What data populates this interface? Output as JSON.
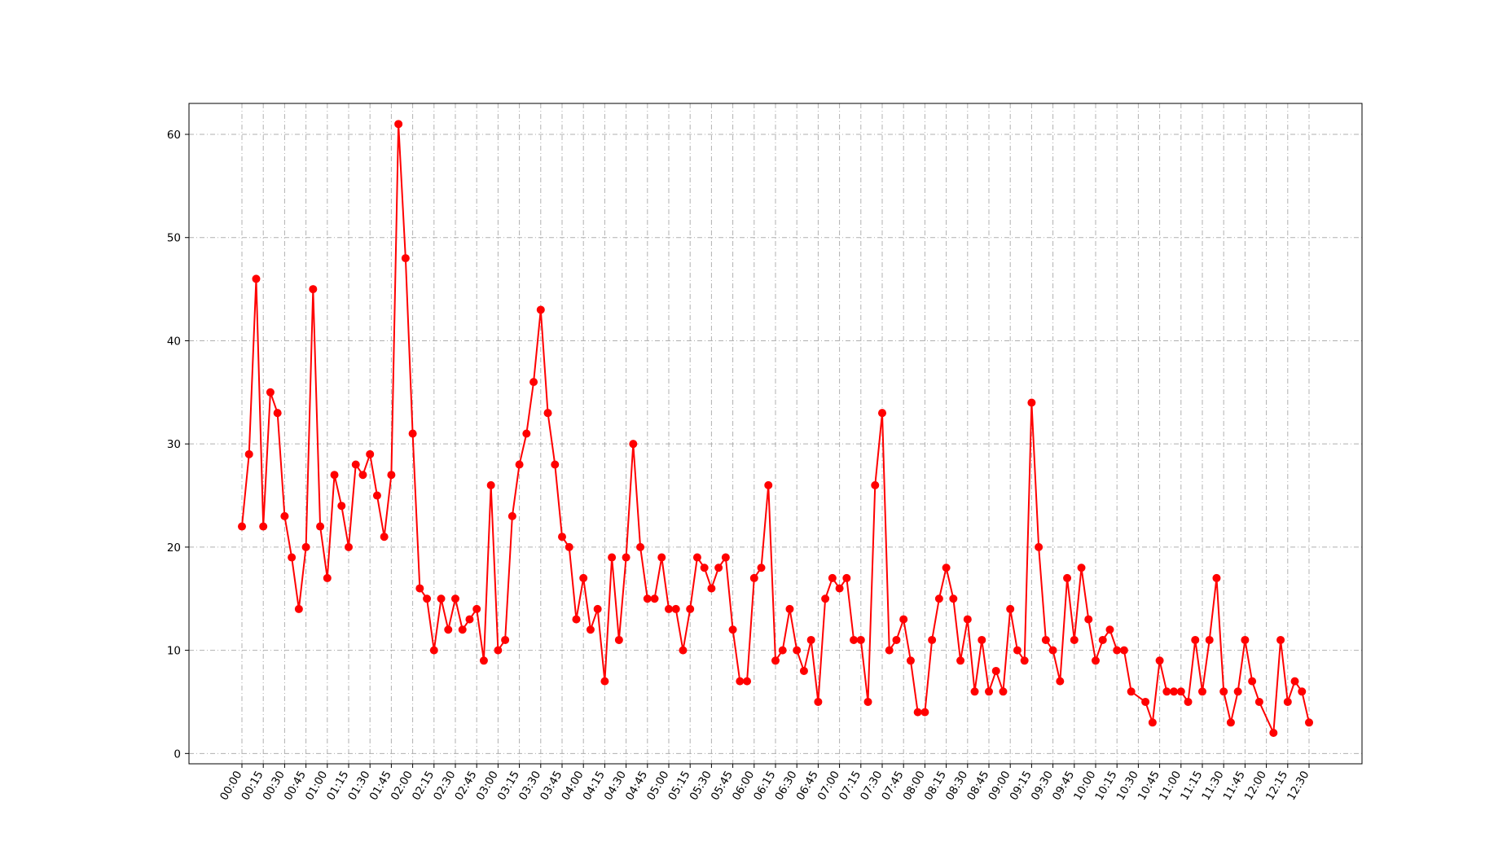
{
  "chart_data": {
    "type": "line",
    "title": "",
    "xlabel": "",
    "ylabel": "",
    "ylim": [
      -1,
      63
    ],
    "yticks": [
      0,
      10,
      20,
      30,
      40,
      50,
      60
    ],
    "grid": true,
    "grid_style": "dashdot",
    "series_color": "#ff0000",
    "marker": "circle",
    "x_tick_labels": [
      "00:00",
      "00:15",
      "00:30",
      "00:45",
      "01:00",
      "01:15",
      "01:30",
      "01:45",
      "02:00",
      "02:15",
      "02:30",
      "02:45",
      "03:00",
      "03:15",
      "03:30",
      "03:45",
      "04:00",
      "04:15",
      "04:30",
      "04:45",
      "05:00",
      "05:15",
      "05:30",
      "05:45",
      "06:00",
      "06:15",
      "06:30",
      "06:45",
      "07:00",
      "07:15",
      "07:30",
      "07:45",
      "08:00",
      "08:15",
      "08:30",
      "08:45",
      "09:00",
      "09:15",
      "09:30",
      "09:45",
      "10:00",
      "10:15",
      "10:30",
      "10:45",
      "11:00",
      "11:15",
      "11:30",
      "11:45",
      "12:00",
      "12:15",
      "12:30"
    ],
    "points": [
      [
        "00:00",
        22
      ],
      [
        "00:05",
        29
      ],
      [
        "00:10",
        46
      ],
      [
        "00:15",
        22
      ],
      [
        "00:20",
        35
      ],
      [
        "00:25",
        33
      ],
      [
        "00:30",
        23
      ],
      [
        "00:35",
        19
      ],
      [
        "00:40",
        14
      ],
      [
        "00:45",
        20
      ],
      [
        "00:50",
        45
      ],
      [
        "00:55",
        22
      ],
      [
        "01:00",
        17
      ],
      [
        "01:05",
        27
      ],
      [
        "01:10",
        24
      ],
      [
        "01:15",
        20
      ],
      [
        "01:20",
        28
      ],
      [
        "01:25",
        27
      ],
      [
        "01:30",
        29
      ],
      [
        "01:35",
        25
      ],
      [
        "01:40",
        21
      ],
      [
        "01:45",
        27
      ],
      [
        "01:50",
        61
      ],
      [
        "01:55",
        48
      ],
      [
        "02:00",
        31
      ],
      [
        "02:05",
        16
      ],
      [
        "02:10",
        15
      ],
      [
        "02:15",
        10
      ],
      [
        "02:20",
        15
      ],
      [
        "02:25",
        12
      ],
      [
        "02:30",
        15
      ],
      [
        "02:35",
        12
      ],
      [
        "02:40",
        13
      ],
      [
        "02:45",
        14
      ],
      [
        "02:50",
        9
      ],
      [
        "02:55",
        26
      ],
      [
        "03:00",
        10
      ],
      [
        "03:05",
        11
      ],
      [
        "03:10",
        23
      ],
      [
        "03:15",
        28
      ],
      [
        "03:20",
        31
      ],
      [
        "03:25",
        36
      ],
      [
        "03:30",
        43
      ],
      [
        "03:35",
        33
      ],
      [
        "03:40",
        28
      ],
      [
        "03:45",
        21
      ],
      [
        "03:50",
        20
      ],
      [
        "03:55",
        13
      ],
      [
        "04:00",
        17
      ],
      [
        "04:05",
        12
      ],
      [
        "04:10",
        14
      ],
      [
        "04:15",
        7
      ],
      [
        "04:20",
        19
      ],
      [
        "04:25",
        11
      ],
      [
        "04:30",
        19
      ],
      [
        "04:35",
        30
      ],
      [
        "04:40",
        20
      ],
      [
        "04:45",
        15
      ],
      [
        "04:50",
        15
      ],
      [
        "04:55",
        19
      ],
      [
        "05:00",
        14
      ],
      [
        "05:05",
        14
      ],
      [
        "05:10",
        10
      ],
      [
        "05:15",
        14
      ],
      [
        "05:20",
        19
      ],
      [
        "05:25",
        18
      ],
      [
        "05:30",
        16
      ],
      [
        "05:35",
        18
      ],
      [
        "05:40",
        19
      ],
      [
        "05:45",
        12
      ],
      [
        "05:50",
        7
      ],
      [
        "05:55",
        7
      ],
      [
        "06:00",
        17
      ],
      [
        "06:05",
        18
      ],
      [
        "06:10",
        26
      ],
      [
        "06:15",
        9
      ],
      [
        "06:20",
        10
      ],
      [
        "06:25",
        14
      ],
      [
        "06:30",
        10
      ],
      [
        "06:35",
        8
      ],
      [
        "06:40",
        11
      ],
      [
        "06:45",
        5
      ],
      [
        "06:50",
        15
      ],
      [
        "06:55",
        17
      ],
      [
        "07:00",
        16
      ],
      [
        "07:05",
        17
      ],
      [
        "07:10",
        11
      ],
      [
        "07:15",
        11
      ],
      [
        "07:20",
        5
      ],
      [
        "07:25",
        26
      ],
      [
        "07:30",
        33
      ],
      [
        "07:35",
        10
      ],
      [
        "07:40",
        11
      ],
      [
        "07:45",
        13
      ],
      [
        "07:50",
        9
      ],
      [
        "07:55",
        4
      ],
      [
        "08:00",
        4
      ],
      [
        "08:05",
        11
      ],
      [
        "08:10",
        15
      ],
      [
        "08:15",
        18
      ],
      [
        "08:20",
        15
      ],
      [
        "08:25",
        9
      ],
      [
        "08:30",
        13
      ],
      [
        "08:35",
        6
      ],
      [
        "08:40",
        11
      ],
      [
        "08:45",
        6
      ],
      [
        "08:50",
        8
      ],
      [
        "08:55",
        6
      ],
      [
        "09:00",
        14
      ],
      [
        "09:05",
        10
      ],
      [
        "09:10",
        9
      ],
      [
        "09:15",
        34
      ],
      [
        "09:20",
        20
      ],
      [
        "09:25",
        11
      ],
      [
        "09:30",
        10
      ],
      [
        "09:35",
        7
      ],
      [
        "09:40",
        17
      ],
      [
        "09:45",
        11
      ],
      [
        "09:50",
        18
      ],
      [
        "09:55",
        13
      ],
      [
        "10:00",
        9
      ],
      [
        "10:05",
        11
      ],
      [
        "10:10",
        12
      ],
      [
        "10:15",
        10
      ],
      [
        "10:20",
        10
      ],
      [
        "10:25",
        6
      ],
      [
        "10:35",
        5
      ],
      [
        "10:40",
        3
      ],
      [
        "10:45",
        9
      ],
      [
        "10:50",
        6
      ],
      [
        "10:55",
        6
      ],
      [
        "11:00",
        6
      ],
      [
        "11:05",
        5
      ],
      [
        "11:10",
        11
      ],
      [
        "11:15",
        6
      ],
      [
        "11:20",
        11
      ],
      [
        "11:25",
        17
      ],
      [
        "11:30",
        6
      ],
      [
        "11:35",
        3
      ],
      [
        "11:40",
        6
      ],
      [
        "11:45",
        11
      ],
      [
        "11:50",
        7
      ],
      [
        "11:55",
        5
      ],
      [
        "12:05",
        2
      ],
      [
        "12:10",
        11
      ],
      [
        "12:15",
        5
      ],
      [
        "12:20",
        7
      ],
      [
        "12:25",
        6
      ],
      [
        "12:30",
        3
      ]
    ]
  }
}
